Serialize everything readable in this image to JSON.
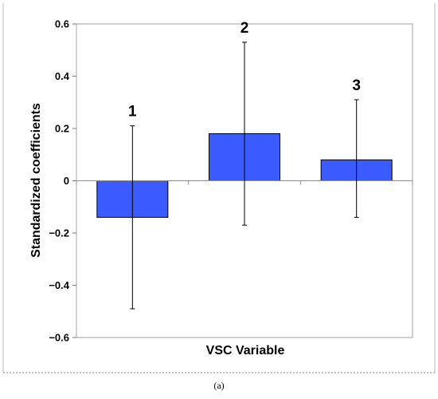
{
  "chart_data": {
    "type": "bar",
    "xlabel": "VSC Variable",
    "ylabel": "Standardized coefficients",
    "ylim": [
      -0.6,
      0.6
    ],
    "y_ticks": [
      {
        "value": 0.6,
        "label": "0.6"
      },
      {
        "value": 0.4,
        "label": "0.4"
      },
      {
        "value": 0.2,
        "label": "0.2"
      },
      {
        "value": 0,
        "label": "0"
      },
      {
        "value": -0.2,
        "label": "−0.2"
      },
      {
        "value": -0.4,
        "label": "−0.4"
      },
      {
        "value": -0.6,
        "label": "−0.6"
      }
    ],
    "categories": [
      "1",
      "2",
      "3"
    ],
    "values": [
      -0.14,
      0.18,
      0.08
    ],
    "error_bars": [
      {
        "low": -0.49,
        "high": 0.21
      },
      {
        "low": -0.17,
        "high": 0.53
      },
      {
        "low": -0.14,
        "high": 0.31
      }
    ],
    "bar_color": "#3b5bff",
    "grid": false,
    "legend": "none"
  },
  "caption": "(a)"
}
